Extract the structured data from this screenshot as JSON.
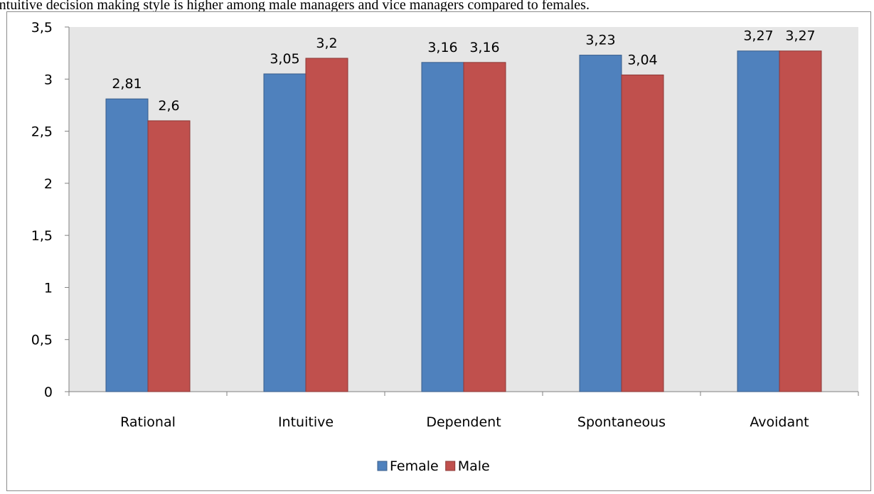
{
  "caption": "Intuitive decision making style is higher among male managers and vice managers compared to females.",
  "chart_data": {
    "type": "bar",
    "categories": [
      "Rational",
      "Intuitive",
      "Dependent",
      "Spontaneous",
      "Avoidant"
    ],
    "series": [
      {
        "name": "Female",
        "values": [
          2.81,
          3.05,
          3.16,
          3.23,
          3.27
        ],
        "labels": [
          "2,81",
          "3,05",
          "3,16",
          "3,23",
          "3,27"
        ],
        "color": "#4f81bd",
        "stroke": "#385d8a"
      },
      {
        "name": "Male",
        "values": [
          2.6,
          3.2,
          3.16,
          3.04,
          3.27
        ],
        "labels": [
          "2,6",
          "3,2",
          "3,16",
          "3,04",
          "3,27"
        ],
        "color": "#c0504d",
        "stroke": "#8c3836"
      }
    ],
    "yticks": [
      "0",
      "0,5",
      "1",
      "1,5",
      "2",
      "2,5",
      "3",
      "3,5"
    ],
    "ylim": [
      0,
      3.5
    ],
    "title": "",
    "xlabel": "",
    "ylabel": "",
    "grid": false,
    "legend": "bottom",
    "plot_background": "#e6e6e6"
  }
}
